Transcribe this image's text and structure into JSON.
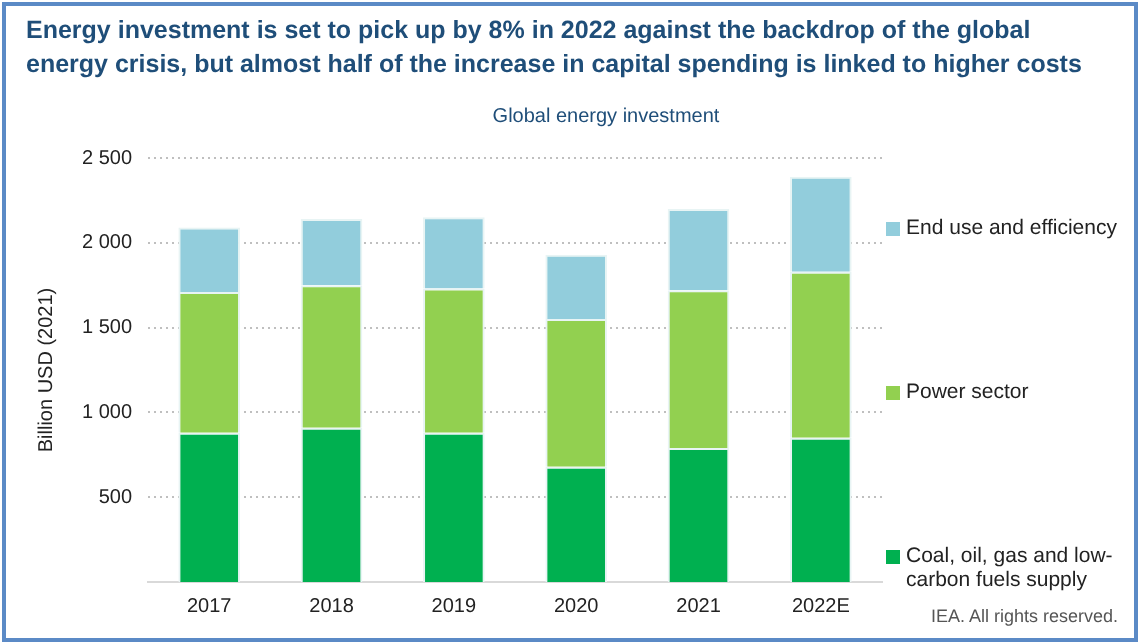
{
  "chart_data": {
    "type": "bar",
    "title": "Energy investment is set to pick up by 8% in 2022 against the backdrop of the global energy crisis, but almost half of the increase in capital spending is linked to higher costs",
    "subtitle": "Global energy investment",
    "ylabel": "Billion USD (2021)",
    "categories": [
      "2017",
      "2018",
      "2019",
      "2020",
      "2021",
      "2022E"
    ],
    "series": [
      {
        "name": "Coal, oil, gas and low-carbon fuels supply",
        "color": "#00b050",
        "values": [
          880,
          910,
          880,
          680,
          790,
          850
        ]
      },
      {
        "name": "Power sector",
        "color": "#92d050",
        "values": [
          830,
          840,
          850,
          870,
          930,
          980
        ]
      },
      {
        "name": "End use and efficiency",
        "color": "#92cddc",
        "values": [
          380,
          390,
          420,
          380,
          480,
          560
        ]
      }
    ],
    "stacked": true,
    "ylim": [
      0,
      2500
    ],
    "yticks": [
      500,
      {
        "value": 1000,
        "label": "1 000"
      },
      {
        "value": 1500,
        "label": "1 500"
      },
      {
        "value": 2000,
        "label": "2 000"
      },
      {
        "value": 2500,
        "label": "2 500"
      }
    ],
    "grid": "y",
    "legend": "right",
    "annotations": [
      "IEA. All rights reserved."
    ]
  }
}
